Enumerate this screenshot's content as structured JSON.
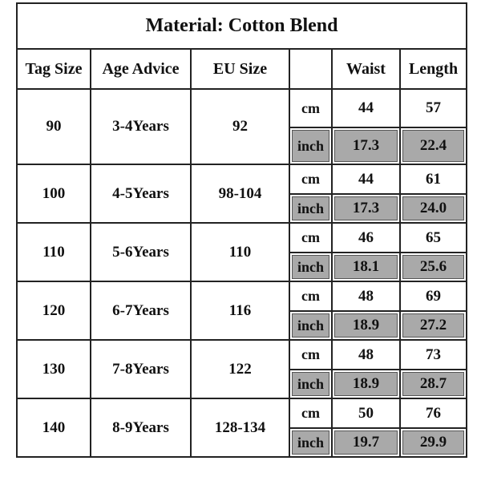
{
  "title": "Material: Cotton Blend",
  "headers": [
    "Tag Size",
    "Age Advice",
    "EU Size",
    "Waist",
    "Length"
  ],
  "rows": [
    {
      "tag": "90",
      "age": "3-4Years",
      "eu": "92",
      "cm_unit": "cm",
      "cm": [
        "44",
        "57"
      ],
      "inch_unit": "inch",
      "inch": [
        "17.3",
        "22.4"
      ]
    },
    {
      "tag": "100",
      "age": "4-5Years",
      "eu": "98-104",
      "cm_unit": "cm",
      "cm": [
        "44",
        "61"
      ],
      "inch_unit": "inch",
      "inch": [
        "17.3",
        "24.0"
      ]
    },
    {
      "tag": "110",
      "age": "5-6Years",
      "eu": "110",
      "cm_unit": "cm",
      "cm": [
        "46",
        "65"
      ],
      "inch_unit": "inch",
      "inch": [
        "18.1",
        "25.6"
      ]
    },
    {
      "tag": "120",
      "age": "6-7Years",
      "eu": "116",
      "cm_unit": "cm",
      "cm": [
        "48",
        "69"
      ],
      "inch_unit": "inch",
      "inch": [
        "18.9",
        "27.2"
      ]
    },
    {
      "tag": "130",
      "age": "7-8Years",
      "eu": "122",
      "cm_unit": "cm",
      "cm": [
        "48",
        "73"
      ],
      "inch_unit": "inch",
      "inch": [
        "18.9",
        "28.7"
      ]
    },
    {
      "tag": "140",
      "age": "8-9Years",
      "eu": "128-134",
      "cm_unit": "cm",
      "cm": [
        "50",
        "76"
      ],
      "inch_unit": "inch",
      "inch": [
        "19.7",
        "29.9"
      ]
    }
  ]
}
